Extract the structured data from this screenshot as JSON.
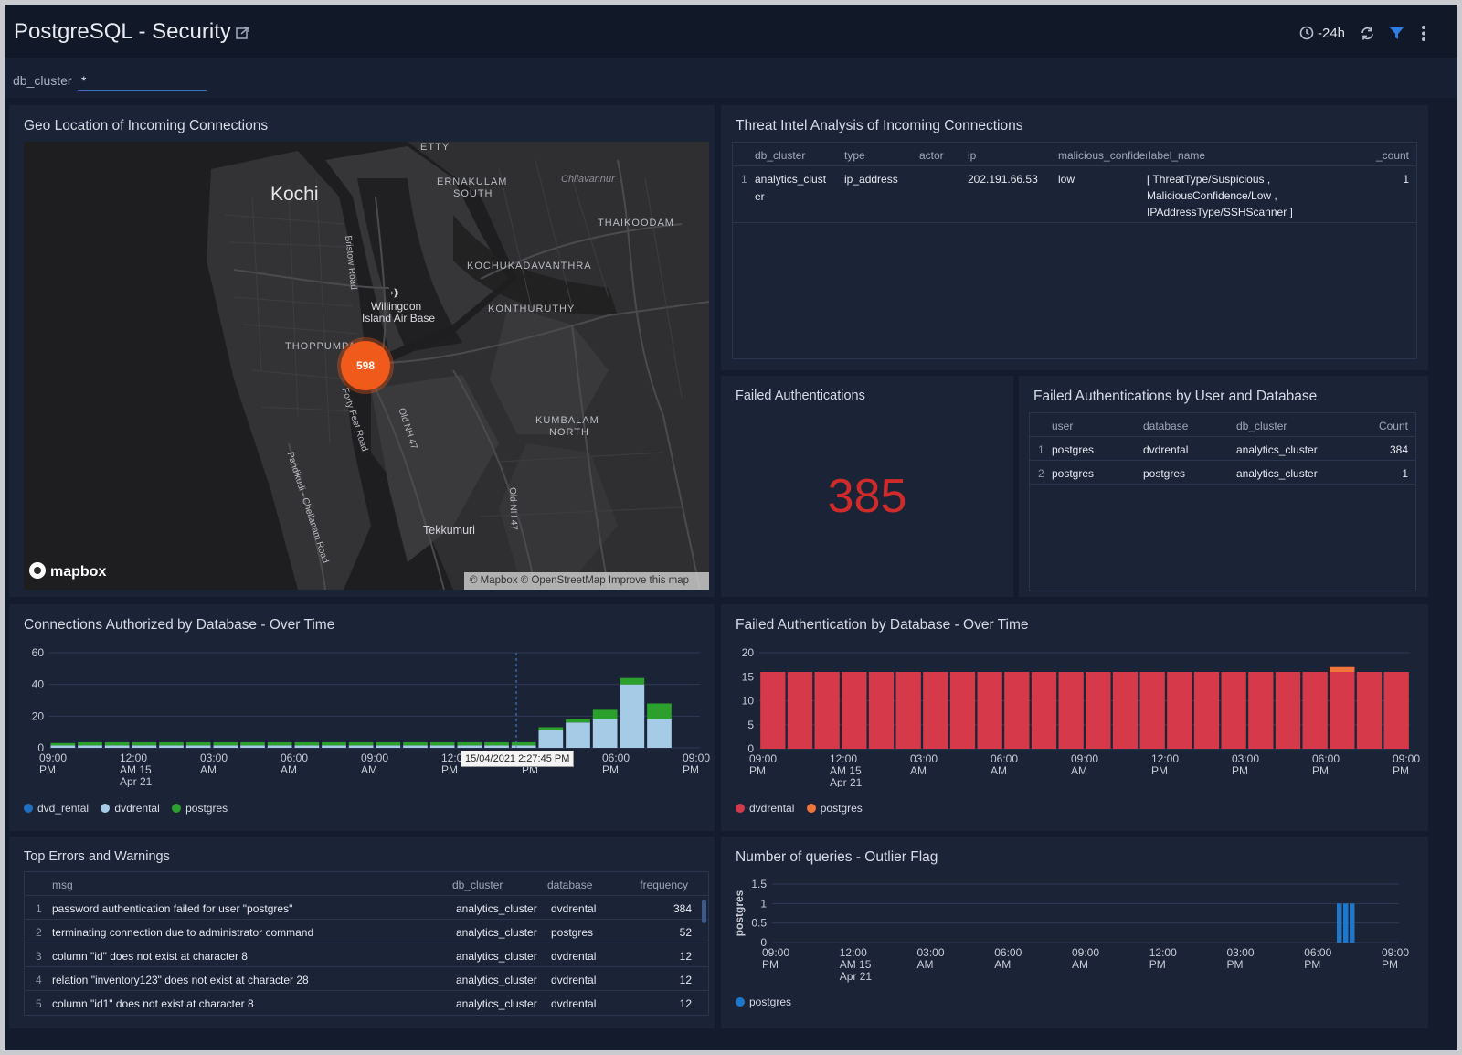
{
  "header": {
    "title": "PostgreSQL - Security",
    "time_range": "-24h"
  },
  "filter": {
    "label": "db_cluster",
    "value": "*"
  },
  "geo_panel": {
    "title": "Geo Location of Incoming Connections",
    "cluster_count": "598",
    "labels": {
      "kochi": "Kochi",
      "ernakulam": "ERNAKULAM",
      "south": "SOUTH",
      "chittoor": "Chilavannur",
      "thaikoodam": "THAIKOODAM",
      "kochukadavanthra": "KOCHUKADAVANTHRA",
      "konthuruthy": "KONTHURUTHY",
      "willingdon1": "Willingdon",
      "willingdon2": "Island Air Base",
      "thoppumpady": "THOPPUMPA",
      "kumbalam1": "KUMBALAM",
      "kumbalam2": "NORTH",
      "tekkumuri": "Tekkumuri",
      "bristow": "Bristow Road",
      "fortyfeet": "Forty Feet Road",
      "oldnh1": "Old NH 47",
      "oldnh2": "Old NH 47",
      "pandikudi": "Pandikudi - Chellanam Road",
      "ietty": "IETTY"
    },
    "mapbox": "mapbox",
    "attribution": "© Mapbox © OpenStreetMap Improve this map"
  },
  "threat_panel": {
    "title": "Threat Intel Analysis of Incoming Connections",
    "columns": [
      "db_cluster",
      "type",
      "actor",
      "ip",
      "malicious_confidence",
      "label_name",
      "_count"
    ],
    "row": {
      "num": "1",
      "db_cluster_1": "analytics_clust",
      "db_cluster_2": "er",
      "type": "ip_address",
      "actor": "",
      "ip": "202.191.66.53",
      "malicious_confidence": "low",
      "label_1": "[ ThreatType/Suspicious ,",
      "label_2": "MaliciousConfidence/Low ,",
      "label_3": "IPAddressType/SSHScanner ]",
      "count": "1"
    }
  },
  "failed_auth": {
    "title": "Failed Authentications",
    "value": "385"
  },
  "failed_by_user": {
    "title": "Failed Authentications by User and Database",
    "columns": [
      "user",
      "database",
      "db_cluster",
      "Count"
    ],
    "rows": [
      {
        "num": "1",
        "user": "postgres",
        "database": "dvdrental",
        "db_cluster": "analytics_cluster",
        "count": "384"
      },
      {
        "num": "2",
        "user": "postgres",
        "database": "postgres",
        "db_cluster": "analytics_cluster",
        "count": "1"
      }
    ]
  },
  "errors_panel": {
    "title": "Top Errors and Warnings",
    "columns": [
      "msg",
      "db_cluster",
      "database",
      "frequency"
    ],
    "rows": [
      {
        "num": "1",
        "msg": "password authentication failed for user \"postgres\"",
        "db_cluster": "analytics_cluster",
        "database": "dvdrental",
        "frequency": "384"
      },
      {
        "num": "2",
        "msg": "terminating connection due to administrator command",
        "db_cluster": "analytics_cluster",
        "database": "postgres",
        "frequency": "52"
      },
      {
        "num": "3",
        "msg": "column \"id\" does not exist at character 8",
        "db_cluster": "analytics_cluster",
        "database": "dvdrental",
        "frequency": "12"
      },
      {
        "num": "4",
        "msg": "relation \"inventory123\" does not exist at character 28",
        "db_cluster": "analytics_cluster",
        "database": "dvdrental",
        "frequency": "12"
      },
      {
        "num": "5",
        "msg": "column \"id1\" does not exist at character 8",
        "db_cluster": "analytics_cluster",
        "database": "dvdrental",
        "frequency": "12"
      }
    ]
  },
  "chart_data": [
    {
      "id": "connections",
      "title": "Connections Authorized by Database - Over Time",
      "type": "bar",
      "stacked": true,
      "ylim": [
        0,
        60
      ],
      "yticks": [
        0,
        20,
        40,
        60
      ],
      "xticks": [
        [
          "09:00",
          "PM",
          ""
        ],
        [
          "12:00",
          "AM 15",
          "Apr 21"
        ],
        [
          "03:00",
          "AM",
          ""
        ],
        [
          "06:00",
          "AM",
          ""
        ],
        [
          "09:00",
          "AM",
          ""
        ],
        [
          "12:00",
          "PM",
          ""
        ],
        [
          "03:00",
          "PM",
          ""
        ],
        [
          "06:00",
          "PM",
          ""
        ],
        [
          "09:00",
          "PM",
          ""
        ]
      ],
      "tooltip": "15/04/2021 2:27:45 PM",
      "colors": {
        "dvd_rental": "#1f6fc1",
        "dvdrental": "#a6cbe6",
        "postgres": "#2ca02c"
      },
      "series": [
        {
          "name": "dvd_rental",
          "values": [
            0,
            0,
            0,
            0,
            0,
            0,
            0,
            0,
            0,
            0,
            0,
            0,
            0,
            0,
            0,
            0,
            0,
            0,
            0,
            0,
            0,
            0,
            0,
            0
          ]
        },
        {
          "name": "dvdrental",
          "values": [
            1.5,
            1.5,
            1.5,
            1.5,
            1.5,
            1.5,
            1.5,
            1.5,
            1.5,
            1.5,
            1.5,
            1.5,
            1.5,
            1.5,
            1.5,
            1.5,
            1.5,
            1.5,
            11,
            16,
            18,
            40,
            18,
            0
          ]
        },
        {
          "name": "postgres",
          "values": [
            1.5,
            2,
            2,
            2,
            2,
            2,
            2,
            2,
            2,
            2,
            2,
            2,
            2,
            2,
            2,
            2,
            2,
            2,
            2,
            2,
            6,
            4,
            10,
            0
          ]
        }
      ]
    },
    {
      "id": "failed_over_time",
      "title": "Failed Authentication by Database - Over Time",
      "type": "bar",
      "stacked": true,
      "ylim": [
        0,
        20
      ],
      "yticks": [
        0,
        5,
        10,
        15,
        20
      ],
      "xticks": [
        [
          "09:00",
          "PM",
          ""
        ],
        [
          "12:00",
          "AM 15",
          "Apr 21"
        ],
        [
          "03:00",
          "AM",
          ""
        ],
        [
          "06:00",
          "AM",
          ""
        ],
        [
          "09:00",
          "AM",
          ""
        ],
        [
          "12:00",
          "PM",
          ""
        ],
        [
          "03:00",
          "PM",
          ""
        ],
        [
          "06:00",
          "PM",
          ""
        ],
        [
          "09:00",
          "PM",
          ""
        ]
      ],
      "colors": {
        "dvdrental": "#d63a4a",
        "postgres": "#f0753a"
      },
      "series": [
        {
          "name": "dvdrental",
          "values": [
            16,
            16,
            16,
            16,
            16,
            16,
            16,
            16,
            16,
            16,
            16,
            16,
            16,
            16,
            16,
            16,
            16,
            16,
            16,
            16,
            16,
            16,
            16,
            16
          ]
        },
        {
          "name": "postgres",
          "values": [
            0,
            0,
            0,
            0,
            0,
            0,
            0,
            0,
            0,
            0,
            0,
            0,
            0,
            0,
            0,
            0,
            0,
            0,
            0,
            0,
            0,
            1,
            0,
            0
          ]
        }
      ]
    },
    {
      "id": "outlier",
      "title": "Number of queries - Outlier Flag",
      "type": "bar",
      "ylabel": "postgres",
      "ylim": [
        0,
        1.5
      ],
      "yticks": [
        "0",
        "0.5",
        "1",
        "1.5"
      ],
      "xticks": [
        [
          "09:00",
          "PM",
          ""
        ],
        [
          "12:00",
          "AM 15",
          "Apr 21"
        ],
        [
          "03:00",
          "AM",
          ""
        ],
        [
          "06:00",
          "AM",
          ""
        ],
        [
          "09:00",
          "AM",
          ""
        ],
        [
          "12:00",
          "PM",
          ""
        ],
        [
          "03:00",
          "PM",
          ""
        ],
        [
          "06:00",
          "PM",
          ""
        ],
        [
          "09:00",
          "PM",
          ""
        ]
      ],
      "colors": {
        "postgres": "#1f77c9"
      },
      "series": [
        {
          "name": "postgres",
          "values": [
            1,
            1,
            1
          ]
        }
      ]
    }
  ]
}
